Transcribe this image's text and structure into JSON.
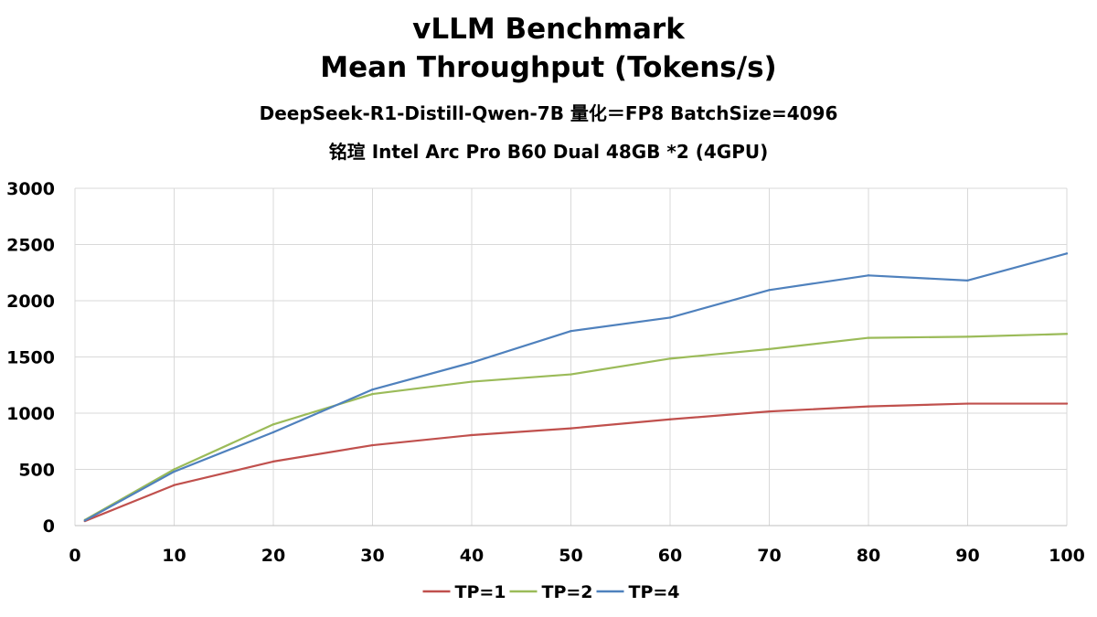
{
  "chart_data": {
    "type": "line",
    "title_lines": [
      "vLLM Benchmark",
      "Mean Throughput (Tokens/s)",
      "DeepSeek-R1-Distill-Qwen-7B 量化＝FP8 BatchSize=4096",
      "铭瑄 Intel Arc Pro B60 Dual 48GB *2 (4GPU)"
    ],
    "x": [
      1,
      10,
      20,
      30,
      40,
      50,
      60,
      70,
      80,
      90,
      100
    ],
    "xlim": [
      0,
      100
    ],
    "ylim": [
      0,
      3000
    ],
    "x_ticks": [
      "0",
      "10",
      "20",
      "30",
      "40",
      "50",
      "60",
      "70",
      "80",
      "90",
      "100"
    ],
    "y_ticks": [
      "0",
      "500",
      "1000",
      "1500",
      "2000",
      "2500",
      "3000"
    ],
    "xlabel": "",
    "ylabel": "",
    "grid": true,
    "legend_position": "bottom",
    "series": [
      {
        "name": "TP=1",
        "color": "#c0504d",
        "values": [
          40,
          360,
          570,
          715,
          805,
          865,
          945,
          1015,
          1060,
          1085,
          1085
        ]
      },
      {
        "name": "TP=2",
        "color": "#9bbb59",
        "values": [
          50,
          500,
          900,
          1170,
          1280,
          1345,
          1485,
          1570,
          1670,
          1680,
          1705
        ]
      },
      {
        "name": "TP=4",
        "color": "#4f81bd",
        "values": [
          45,
          480,
          830,
          1210,
          1450,
          1730,
          1850,
          2095,
          2225,
          2180,
          2420
        ]
      }
    ]
  }
}
